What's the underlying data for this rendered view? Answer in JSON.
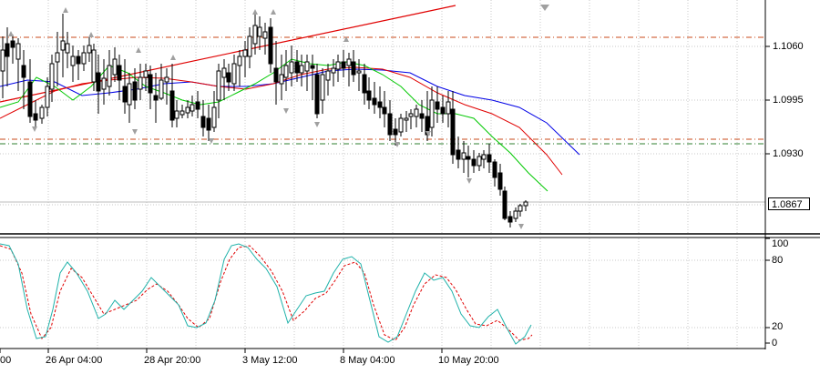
{
  "price_axis": {
    "labels": [
      "1.1060",
      "1.0995",
      "1.0930"
    ],
    "current_price": "1.0867"
  },
  "oscillator_axis": {
    "labels": [
      "100",
      "80",
      "20",
      "0"
    ]
  },
  "time_axis": {
    "labels": [
      "00",
      "26 Apr 04:00",
      "28 Apr 20:00",
      "3 May 12:00",
      "8 May 04:00",
      "10 May 20:00"
    ]
  },
  "colors": {
    "background": "#ffffff",
    "grid": "#c8c8c8",
    "candle": "#000000",
    "ma_fast": "#00c800",
    "ma_mid": "#e00000",
    "ma_slow": "#0000e6",
    "trendline": "#e00000",
    "level_upper": "#c84a1a",
    "level_lower": "#2f7f2f",
    "stoch_main": "#20b2aa",
    "stoch_signal": "#e00000",
    "fractal": "#a0a0a0"
  },
  "icons": {
    "fractal_up": "fractal-up-arrow-icon",
    "fractal_down": "fractal-down-arrow-icon"
  }
}
